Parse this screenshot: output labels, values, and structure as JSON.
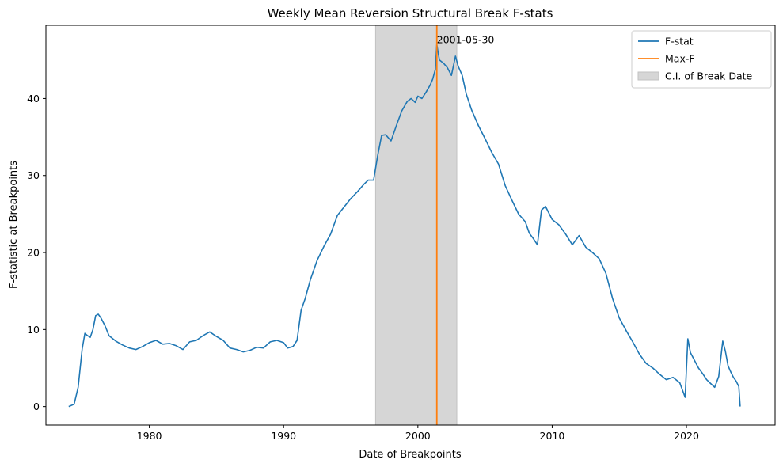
{
  "chart_data": {
    "type": "line",
    "title": "Weekly Mean Reversion Structural Break F-stats",
    "xlabel": "Date of Breakpoints",
    "ylabel": "F-statistic at Breakpoints",
    "xlim": [
      1972.3,
      2026.6
    ],
    "ylim": [
      -2.4,
      49.5
    ],
    "x_ticks": [
      1980,
      1990,
      2000,
      2010,
      2020
    ],
    "x_tick_labels": [
      "1980",
      "1990",
      "2000",
      "2010",
      "2020"
    ],
    "y_ticks": [
      0,
      10,
      20,
      30,
      40
    ],
    "y_tick_labels": [
      "0",
      "10",
      "20",
      "30",
      "40"
    ],
    "grid": false,
    "legend_placement": "top-right",
    "series": [
      {
        "name": "F-stat",
        "color": "#1f77b4",
        "x": [
          1974.0,
          1974.4,
          1974.7,
          1975.0,
          1975.2,
          1975.4,
          1975.6,
          1975.8,
          1976.0,
          1976.2,
          1976.4,
          1976.7,
          1977.0,
          1977.5,
          1978.0,
          1978.5,
          1979.0,
          1979.5,
          1980.0,
          1980.5,
          1981.0,
          1981.5,
          1982.0,
          1982.5,
          1983.0,
          1983.5,
          1984.0,
          1984.5,
          1985.0,
          1985.5,
          1986.0,
          1986.5,
          1987.0,
          1987.5,
          1988.0,
          1988.5,
          1989.0,
          1989.5,
          1990.0,
          1990.3,
          1990.7,
          1991.0,
          1991.3,
          1991.6,
          1992.0,
          1992.5,
          1993.0,
          1993.5,
          1994.0,
          1994.5,
          1995.0,
          1995.5,
          1996.0,
          1996.3,
          1996.7,
          1997.0,
          1997.3,
          1997.6,
          1998.0,
          1998.4,
          1998.8,
          1999.2,
          1999.5,
          1999.8,
          2000.0,
          2000.3,
          2000.6,
          2000.9,
          2001.1,
          2001.3,
          2001.41,
          2001.6,
          2001.9,
          2002.2,
          2002.5,
          2002.8,
          2003.0,
          2003.3,
          2003.6,
          2004.0,
          2004.5,
          2005.0,
          2005.5,
          2006.0,
          2006.5,
          2007.0,
          2007.5,
          2008.0,
          2008.3,
          2008.6,
          2008.9,
          2009.2,
          2009.5,
          2010.0,
          2010.5,
          2011.0,
          2011.5,
          2012.0,
          2012.5,
          2013.0,
          2013.5,
          2014.0,
          2014.5,
          2015.0,
          2015.5,
          2016.0,
          2016.5,
          2017.0,
          2017.5,
          2018.0,
          2018.5,
          2019.0,
          2019.5,
          2019.9,
          2020.1,
          2020.3,
          2020.6,
          2020.9,
          2021.2,
          2021.5,
          2021.8,
          2022.1,
          2022.4,
          2022.7,
          2022.9,
          2023.1,
          2023.3,
          2023.5,
          2023.7,
          2023.9,
          2024.0
        ],
        "y": [
          0.0,
          0.3,
          2.5,
          7.5,
          9.5,
          9.2,
          9.0,
          10.0,
          11.8,
          12.0,
          11.5,
          10.5,
          9.2,
          8.5,
          8.0,
          7.6,
          7.4,
          7.8,
          8.3,
          8.6,
          8.1,
          8.2,
          7.9,
          7.4,
          8.4,
          8.6,
          9.2,
          9.7,
          9.1,
          8.6,
          7.6,
          7.4,
          7.1,
          7.3,
          7.7,
          7.6,
          8.4,
          8.6,
          8.3,
          7.6,
          7.8,
          8.6,
          12.5,
          14.0,
          16.5,
          19.0,
          20.8,
          22.4,
          24.8,
          25.9,
          27.0,
          27.9,
          28.9,
          29.4,
          29.4,
          32.5,
          35.2,
          35.3,
          34.5,
          36.5,
          38.4,
          39.6,
          40.0,
          39.5,
          40.3,
          40.0,
          40.8,
          41.7,
          42.5,
          43.8,
          47.0,
          45.0,
          44.6,
          44.0,
          43.0,
          45.5,
          44.2,
          43.0,
          40.6,
          38.5,
          36.5,
          34.8,
          33.0,
          31.5,
          28.7,
          26.8,
          25.0,
          24.0,
          22.5,
          21.8,
          21.0,
          25.5,
          26.0,
          24.3,
          23.6,
          22.4,
          21.0,
          22.2,
          20.7,
          20.0,
          19.2,
          17.3,
          14.0,
          11.5,
          9.9,
          8.4,
          6.8,
          5.6,
          5.0,
          4.2,
          3.5,
          3.8,
          3.1,
          1.2,
          8.8,
          7.0,
          6.0,
          5.0,
          4.3,
          3.5,
          3.0,
          2.5,
          3.9,
          8.5,
          7.2,
          5.3,
          4.5,
          3.8,
          3.3,
          2.6,
          0.0
        ]
      },
      {
        "name": "Max-F",
        "color": "#ff7f0e",
        "x_value": 2001.41
      }
    ],
    "shaded_regions": [
      {
        "name": "C.I. of Break Date",
        "x_start": 1996.85,
        "x_end": 2002.9,
        "color": "#d6d6d6"
      }
    ],
    "annotations": [
      {
        "text": "2001-05-30",
        "x": 2001.41,
        "y": 47.2
      }
    ]
  }
}
